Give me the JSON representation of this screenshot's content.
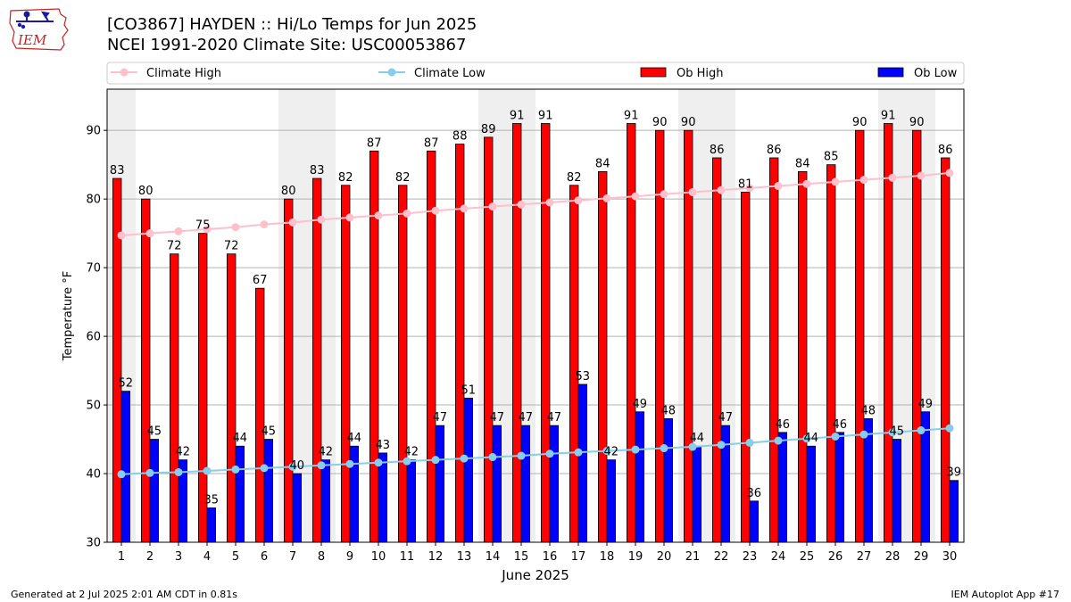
{
  "header": {
    "title_line1": "[CO3867] HAYDEN :: Hi/Lo Temps for Jun 2025",
    "title_line2": "NCEI 1991-2020 Climate Site: USC00053867",
    "logo_text": "IEM"
  },
  "footer": {
    "generated": "Generated at 2 Jul 2025 2:01 AM CDT in 0.81s",
    "app": "IEM Autoplot App #17"
  },
  "colors": {
    "ob_high": "#ff0000",
    "ob_low": "#0000ff",
    "climate_high": "#ffc0cb",
    "climate_low": "#87ceeb",
    "weekend_shade": "#efefef",
    "grid": "#b0b0b0",
    "logo": "#cc2222"
  },
  "chart_data": {
    "type": "bar",
    "xlabel": "June 2025",
    "ylabel": "Temperature °F",
    "ylim": [
      30,
      96
    ],
    "yticks": [
      30,
      40,
      50,
      60,
      70,
      80,
      90
    ],
    "grid": "horizontal",
    "legend_position": "top",
    "categories": [
      "1",
      "2",
      "3",
      "4",
      "5",
      "6",
      "7",
      "8",
      "9",
      "10",
      "11",
      "12",
      "13",
      "14",
      "15",
      "16",
      "17",
      "18",
      "19",
      "20",
      "21",
      "22",
      "23",
      "24",
      "25",
      "26",
      "27",
      "28",
      "29",
      "30"
    ],
    "shaded_days": [
      "1",
      "7",
      "8",
      "14",
      "15",
      "21",
      "22",
      "28",
      "29"
    ],
    "series": [
      {
        "name": "Ob High",
        "kind": "bar",
        "labels": true,
        "values": [
          83,
          80,
          72,
          75,
          72,
          67,
          80,
          83,
          82,
          87,
          82,
          87,
          88,
          89,
          91,
          91,
          82,
          84,
          91,
          90,
          90,
          86,
          81,
          86,
          84,
          85,
          90,
          91,
          90,
          86
        ]
      },
      {
        "name": "Ob Low",
        "kind": "bar",
        "labels": true,
        "values": [
          52,
          45,
          42,
          35,
          44,
          45,
          40,
          42,
          44,
          43,
          42,
          47,
          51,
          47,
          47,
          47,
          53,
          42,
          49,
          48,
          44,
          47,
          36,
          46,
          44,
          46,
          48,
          45,
          49,
          39
        ]
      },
      {
        "name": "Climate High",
        "kind": "line",
        "values": [
          74.7,
          75.0,
          75.3,
          75.6,
          75.9,
          76.3,
          76.6,
          77.0,
          77.3,
          77.6,
          77.9,
          78.3,
          78.6,
          78.9,
          79.2,
          79.5,
          79.8,
          80.1,
          80.4,
          80.7,
          81.0,
          81.3,
          81.6,
          81.9,
          82.2,
          82.5,
          82.8,
          83.1,
          83.4,
          83.8
        ]
      },
      {
        "name": "Climate Low",
        "kind": "line",
        "values": [
          39.9,
          40.1,
          40.2,
          40.4,
          40.6,
          40.8,
          41.0,
          41.2,
          41.4,
          41.6,
          41.8,
          42.0,
          42.2,
          42.4,
          42.6,
          42.9,
          43.1,
          43.3,
          43.5,
          43.7,
          43.9,
          44.2,
          44.5,
          44.8,
          45.1,
          45.4,
          45.7,
          46.0,
          46.3,
          46.6
        ]
      }
    ]
  }
}
